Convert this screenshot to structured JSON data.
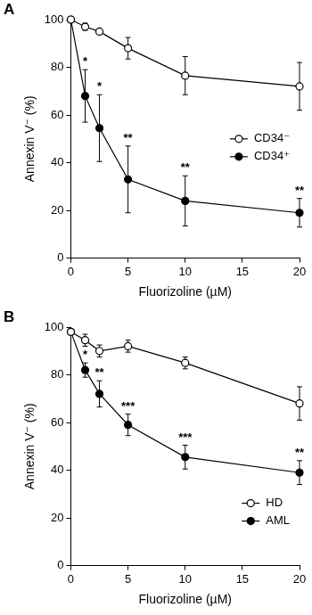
{
  "chart_data": [
    {
      "type": "line",
      "panel": "A",
      "x": [
        0,
        1.25,
        2.5,
        5,
        10,
        20
      ],
      "series": [
        {
          "name": "CD34⁻",
          "color": "#000000",
          "marker": "circle_open",
          "line_style": "solid",
          "values": [
            100,
            97,
            95,
            88,
            76.5,
            72
          ],
          "errors": [
            0,
            1.5,
            1,
            4.5,
            8,
            10
          ]
        },
        {
          "name": "CD34⁺",
          "color": "#000000",
          "marker": "circle",
          "line_style": "solid",
          "values": [
            100,
            68,
            54.5,
            33,
            24,
            19
          ],
          "errors": [
            0,
            11,
            14,
            14,
            10.5,
            6
          ]
        }
      ],
      "xlim": [
        0,
        20
      ],
      "xticks": [
        0,
        5,
        10,
        15,
        20
      ],
      "ylim": [
        0,
        100
      ],
      "yticks": [
        0,
        20,
        40,
        60,
        80,
        100
      ],
      "x_label": "Fluorizoline (µM)",
      "y_label": "Annexin V⁻ (%)",
      "annotations": [
        {
          "x": 1.25,
          "text": "*"
        },
        {
          "x": 2.5,
          "text": "*"
        },
        {
          "x": 5,
          "text": "**"
        },
        {
          "x": 10,
          "text": "**"
        },
        {
          "x": 20,
          "text": "**"
        }
      ],
      "legend": "center right",
      "grid": false
    },
    {
      "type": "line",
      "panel": "B",
      "x": [
        0,
        1.25,
        2.5,
        5,
        10,
        20
      ],
      "series": [
        {
          "name": "HD",
          "color": "#000000",
          "marker": "circle_open",
          "line_style": "solid",
          "values": [
            98,
            94.5,
            90,
            92,
            85,
            68
          ],
          "errors": [
            0,
            2.5,
            2.5,
            2.5,
            2.5,
            7
          ]
        },
        {
          "name": "AML",
          "color": "#000000",
          "marker": "circle",
          "line_style": "solid",
          "values": [
            98,
            82,
            72,
            59,
            45.5,
            39
          ],
          "errors": [
            0,
            3,
            5.5,
            4.5,
            5,
            5
          ]
        }
      ],
      "xlim": [
        0,
        20
      ],
      "xticks": [
        0,
        5,
        10,
        15,
        20
      ],
      "ylim": [
        0,
        100
      ],
      "yticks": [
        0,
        20,
        40,
        60,
        80,
        100
      ],
      "x_label": "Fluorizoline (µM)",
      "y_label": "Annexin V⁻ (%)",
      "annotations": [
        {
          "x": 1.25,
          "text": "*"
        },
        {
          "x": 2.5,
          "text": "**"
        },
        {
          "x": 5,
          "text": "***"
        },
        {
          "x": 10,
          "text": "***"
        },
        {
          "x": 20,
          "text": "**"
        }
      ],
      "legend": "lower right",
      "grid": false
    }
  ]
}
